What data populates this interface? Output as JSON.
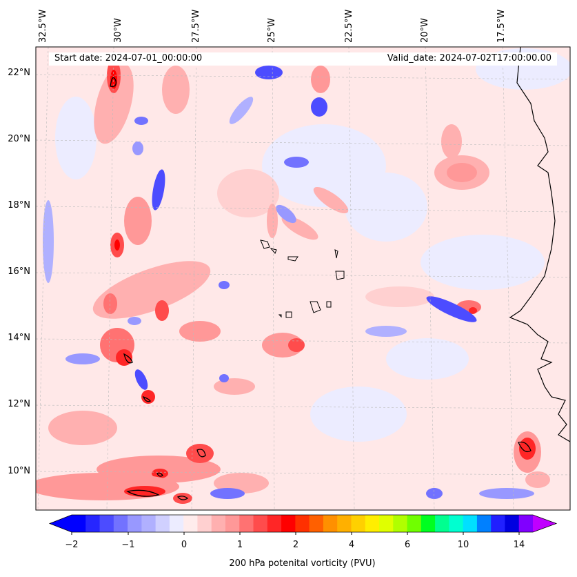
{
  "map": {
    "start_date": "Start date: 2024-07-01_00:00:00",
    "valid_date": "Valid_date: 2024-07-02T17:00:00.00",
    "lon_labels": [
      "32.5°W",
      "30°W",
      "27.5°W",
      "25°W",
      "22.5°W",
      "20°W",
      "17.5°W"
    ],
    "lat_labels": [
      "22°N",
      "20°N",
      "18°N",
      "16°N",
      "14°N",
      "12°N",
      "10°N"
    ],
    "grid": true,
    "coastline_color": "#000000"
  },
  "colorbar": {
    "label": "200 hPa potenital vorticity (PVU)",
    "tick_labels": [
      "−2",
      "−1",
      "0",
      "1",
      "2",
      "4",
      "6",
      "10",
      "14"
    ],
    "colors": [
      "#0000ff",
      "#2626ff",
      "#4c4cff",
      "#7272ff",
      "#9898ff",
      "#b0b0ff",
      "#d0d0ff",
      "#ececff",
      "#ffecec",
      "#ffd0d0",
      "#ffb0b0",
      "#ff9898",
      "#ff7272",
      "#ff4c4c",
      "#ff2626",
      "#ff0000",
      "#ff3000",
      "#ff6000",
      "#ff9000",
      "#ffb000",
      "#ffd000",
      "#ffee00",
      "#e0ff00",
      "#b0ff00",
      "#70ff00",
      "#00ff20",
      "#00ff90",
      "#00ffd0",
      "#00e0ff",
      "#0080ff",
      "#2020ff",
      "#0000e0",
      "#8000ff"
    ],
    "low_extend_color": "#0000ff",
    "high_extend_color": "#c000ff",
    "background_field_color": "#ffe8e8"
  }
}
